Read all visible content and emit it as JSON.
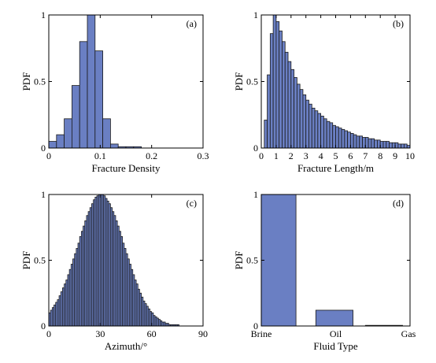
{
  "chart_data": [
    {
      "panel": "(a)",
      "type": "bar",
      "xlabel": "Fracture Density",
      "ylabel": "PDF",
      "xlim": [
        0,
        0.3
      ],
      "ylim": [
        0,
        1
      ],
      "xticks": [
        "0",
        "0.1",
        "0.2",
        "0.3"
      ],
      "yticks": [
        "0",
        "0.5",
        "1"
      ],
      "bin_width": 0.015,
      "bins": [
        0.0,
        0.015,
        0.03,
        0.045,
        0.06,
        0.075,
        0.09,
        0.105,
        0.12,
        0.135,
        0.15,
        0.165,
        0.18,
        0.195
      ],
      "values": [
        0.05,
        0.1,
        0.22,
        0.47,
        0.8,
        1.0,
        0.73,
        0.22,
        0.03,
        0.01,
        0.01,
        0.01,
        0.0,
        0.0
      ]
    },
    {
      "panel": "(b)",
      "type": "bar",
      "xlabel": "Fracture Length/m",
      "ylabel": "PDF",
      "xlim": [
        0,
        10
      ],
      "ylim": [
        0,
        1
      ],
      "xticks": [
        "0",
        "1",
        "2",
        "3",
        "4",
        "5",
        "6",
        "7",
        "8",
        "9",
        "10"
      ],
      "yticks": [
        "0",
        "0.5",
        "1"
      ],
      "bin_width": 0.2,
      "bins_start": 0.2,
      "values": [
        0.21,
        0.55,
        0.86,
        1.0,
        0.95,
        0.88,
        0.8,
        0.72,
        0.65,
        0.59,
        0.53,
        0.48,
        0.44,
        0.4,
        0.36,
        0.33,
        0.3,
        0.28,
        0.26,
        0.24,
        0.22,
        0.2,
        0.19,
        0.17,
        0.16,
        0.15,
        0.14,
        0.13,
        0.12,
        0.11,
        0.1,
        0.09,
        0.09,
        0.08,
        0.08,
        0.07,
        0.07,
        0.06,
        0.06,
        0.05,
        0.05,
        0.05,
        0.04,
        0.04,
        0.04,
        0.03,
        0.03,
        0.03,
        0.02
      ]
    },
    {
      "panel": "(c)",
      "type": "bar",
      "xlabel": "Azimuth/°",
      "ylabel": "PDF",
      "xlim": [
        0,
        90
      ],
      "ylim": [
        0,
        1
      ],
      "xticks": [
        "0",
        "30",
        "60",
        "90"
      ],
      "yticks": [
        "0",
        "0.5",
        "1"
      ],
      "bin_width": 1,
      "values": [
        0.1,
        0.12,
        0.14,
        0.16,
        0.18,
        0.2,
        0.23,
        0.26,
        0.29,
        0.32,
        0.35,
        0.39,
        0.43,
        0.47,
        0.51,
        0.55,
        0.59,
        0.63,
        0.68,
        0.72,
        0.76,
        0.8,
        0.84,
        0.87,
        0.9,
        0.93,
        0.96,
        0.98,
        0.99,
        1.0,
        1.0,
        1.0,
        0.99,
        0.97,
        0.95,
        0.93,
        0.9,
        0.87,
        0.84,
        0.8,
        0.76,
        0.72,
        0.68,
        0.63,
        0.59,
        0.55,
        0.51,
        0.47,
        0.43,
        0.39,
        0.35,
        0.32,
        0.28,
        0.25,
        0.22,
        0.19,
        0.17,
        0.15,
        0.13,
        0.11,
        0.1,
        0.08,
        0.07,
        0.06,
        0.05,
        0.04,
        0.03,
        0.03,
        0.02,
        0.02,
        0.01,
        0.01,
        0.01,
        0.01,
        0.01,
        0.01,
        0.0,
        0.0
      ]
    },
    {
      "panel": "(d)",
      "type": "bar",
      "xlabel": "Fluid Type",
      "ylabel": "PDF",
      "ylim": [
        0,
        1
      ],
      "yticks": [
        "0",
        "0.5",
        "1"
      ],
      "categories": [
        "Brine",
        "Oil",
        "Gas"
      ],
      "values": [
        1.0,
        0.12,
        0.005
      ]
    }
  ],
  "colors": {
    "bar_fill": "#6a7fc3",
    "bar_edge": "#1a1a1a",
    "axis": "#000000"
  }
}
